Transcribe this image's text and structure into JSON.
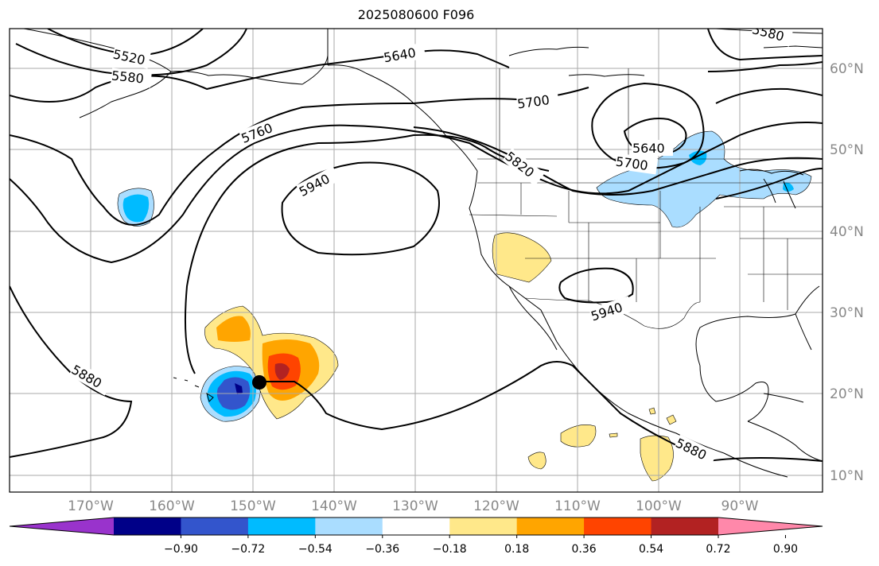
{
  "title": "2025080600 F096",
  "lon_labels": [
    "170°W",
    "160°W",
    "150°W",
    "140°W",
    "130°W",
    "120°W",
    "110°W",
    "100°W",
    "90°W"
  ],
  "lat_labels": [
    "60°N",
    "50°N",
    "40°N",
    "30°N",
    "20°N",
    "10°N"
  ],
  "contours": [
    {
      "id": "c5520",
      "label": "5520"
    },
    {
      "id": "c5580",
      "label": "5580"
    },
    {
      "id": "c5580b",
      "label": "5580"
    },
    {
      "id": "c5640",
      "label": "5640"
    },
    {
      "id": "c5640b",
      "label": "5640"
    },
    {
      "id": "c5700",
      "label": "5700"
    },
    {
      "id": "c5700b",
      "label": "5700"
    },
    {
      "id": "c5760",
      "label": "5760"
    },
    {
      "id": "c5820",
      "label": "5820"
    },
    {
      "id": "c5880",
      "label": "5880"
    },
    {
      "id": "c5880b",
      "label": "5880"
    },
    {
      "id": "c5940",
      "label": "5940"
    },
    {
      "id": "c5940b",
      "label": "5940"
    }
  ],
  "colorbar": {
    "ticks": [
      "−0.90",
      "−0.72",
      "−0.54",
      "−0.36",
      "−0.18",
      "0.18",
      "0.36",
      "0.54",
      "0.72",
      "0.90"
    ],
    "colors": [
      "#9933cc",
      "#000088",
      "#3355cc",
      "#00bbff",
      "#aaddff",
      "#ffffff",
      "#ffe88a",
      "#ffa500",
      "#ff4400",
      "#b22222",
      "#ff88aa"
    ]
  },
  "marker": {
    "name": "storm-center"
  }
}
